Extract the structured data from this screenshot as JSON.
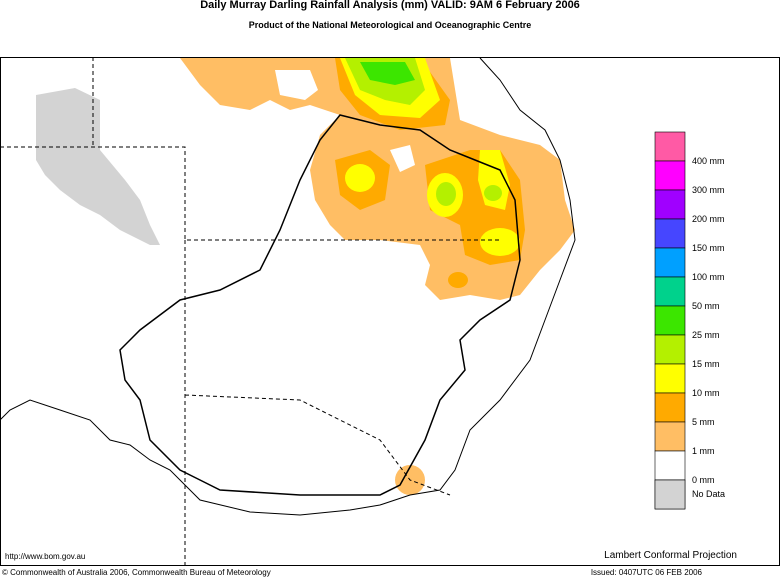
{
  "header": {
    "title": "Daily Murray Darling Rainfall Analysis (mm)  VALID: 9AM  6 February 2006",
    "subtitle": "Product of the National Meteorological and Oceanographic Centre"
  },
  "legend": {
    "items": [
      {
        "label": null,
        "color": "#ff5aa5"
      },
      {
        "label": "400 mm",
        "color": "#ff00ff"
      },
      {
        "label": "300 mm",
        "color": "#a000ff"
      },
      {
        "label": "200 mm",
        "color": "#4646ff"
      },
      {
        "label": "150 mm",
        "color": "#00a0ff"
      },
      {
        "label": "100 mm",
        "color": "#00d28c"
      },
      {
        "label": "50 mm",
        "color": "#3ce600"
      },
      {
        "label": "25 mm",
        "color": "#b4f000"
      },
      {
        "label": "15 mm",
        "color": "#ffff00"
      },
      {
        "label": "10 mm",
        "color": "#ffaa00"
      },
      {
        "label": "5 mm",
        "color": "#ffbe64"
      },
      {
        "label": "1 mm",
        "color": "#ffffff"
      },
      {
        "label": "0 mm",
        "color": "#d3d3d3"
      }
    ],
    "no_data": "No Data"
  },
  "footer": {
    "url": "http://www.bom.gov.au",
    "projection": "Lambert Conformal Projection",
    "copyright": "© Commonwealth of Australia 2006, Commonwealth Bureau of Meteorology",
    "issued": "Issued: 0407UTC 06 FEB 2006"
  }
}
